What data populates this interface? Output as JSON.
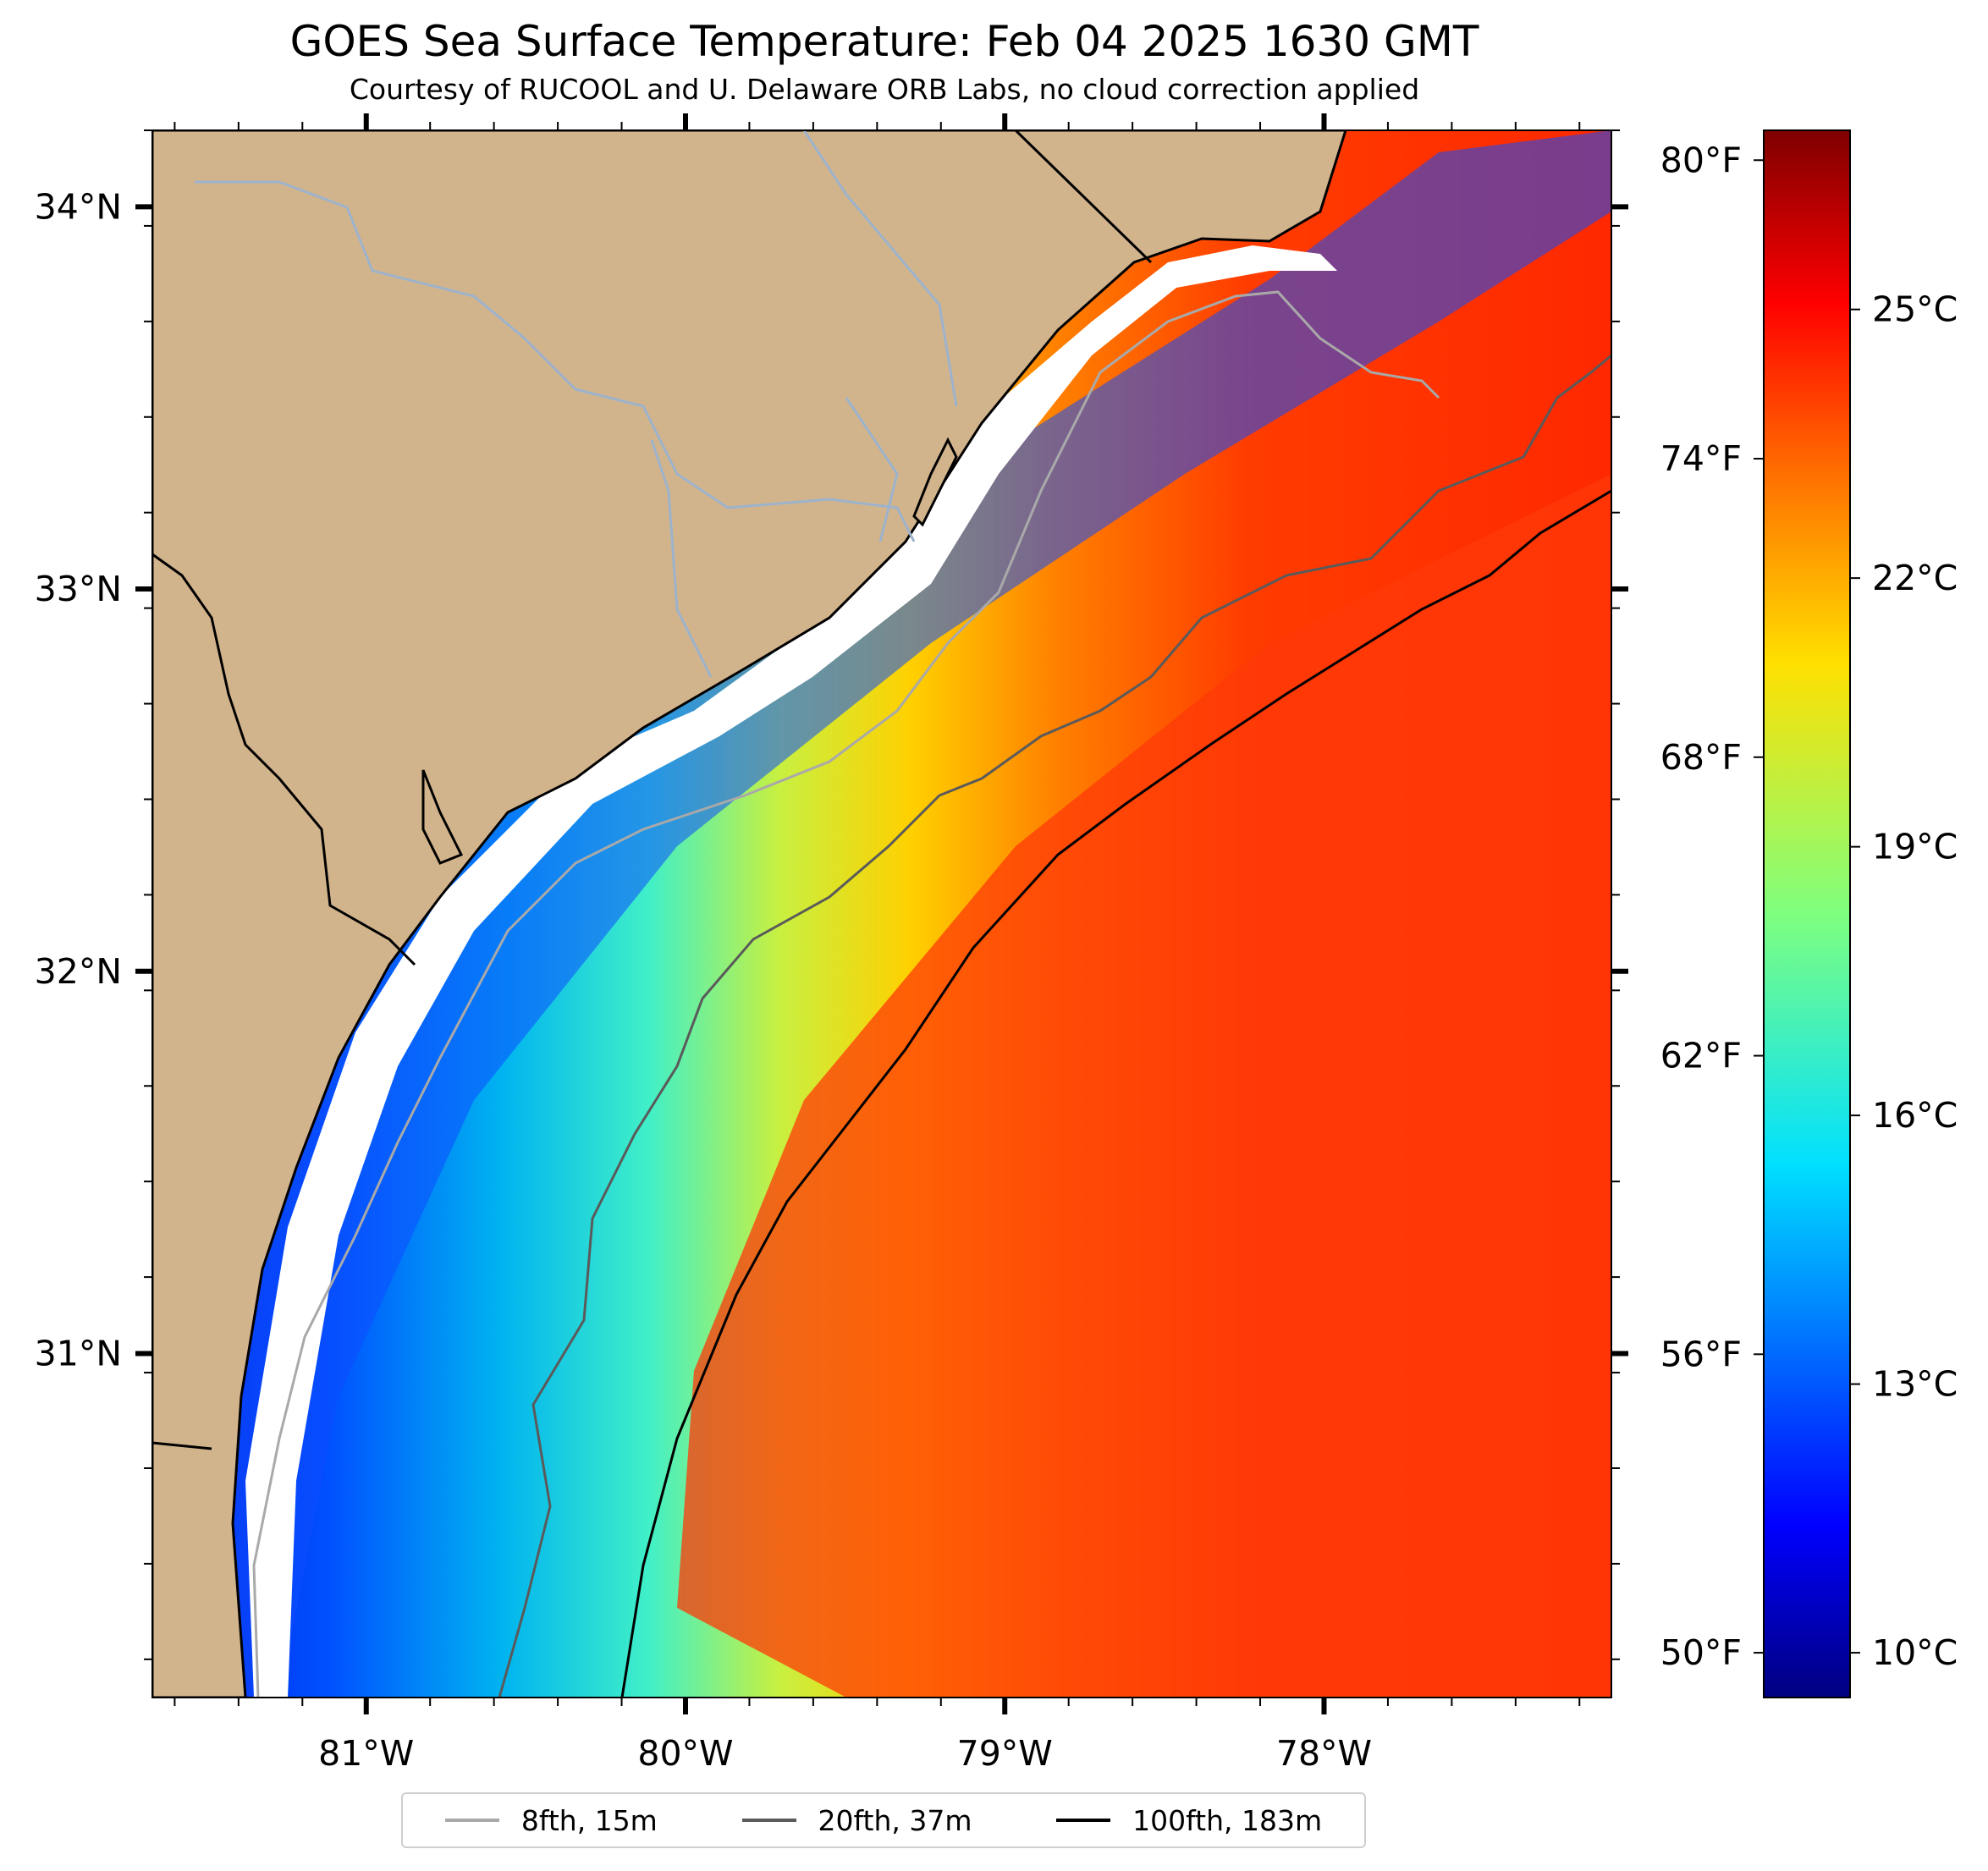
{
  "title": "GOES Sea Surface Temperature: Feb 04 2025 1630 GMT",
  "subtitle": "Courtesy of RUCOOL and U. Delaware ORB Labs, no cloud correction applied",
  "colors": {
    "land": "#d2b48c",
    "river": "#9db3cc",
    "coast": "#000000",
    "isobath_8fth": "#a9a9a9",
    "isobath_20fth": "#5a5a5a",
    "isobath_100fth": "#000000"
  },
  "map": {
    "lon_range": [
      -81.67,
      -77.1
    ],
    "lat_range": [
      30.1,
      34.2
    ],
    "lon_ticks": [
      {
        "value": -81,
        "label": "81°W"
      },
      {
        "value": -80,
        "label": "80°W"
      },
      {
        "value": -79,
        "label": "79°W"
      },
      {
        "value": -78,
        "label": "78°W"
      }
    ],
    "lat_ticks": [
      {
        "value": 34,
        "label": "34°N"
      },
      {
        "value": 33,
        "label": "33°N"
      },
      {
        "value": 32,
        "label": "32°N"
      },
      {
        "value": 31,
        "label": "31°N"
      }
    ]
  },
  "colorbar": {
    "colormap": "jet",
    "range_c": [
      9.5,
      27
    ],
    "celsius_ticks": [
      {
        "value": 10,
        "label": "10°C"
      },
      {
        "value": 13,
        "label": "13°C"
      },
      {
        "value": 16,
        "label": "16°C"
      },
      {
        "value": 19,
        "label": "19°C"
      },
      {
        "value": 22,
        "label": "22°C"
      },
      {
        "value": 25,
        "label": "25°C"
      }
    ],
    "fahrenheit_ticks": [
      {
        "value": 50,
        "label": "50°F"
      },
      {
        "value": 56,
        "label": "56°F"
      },
      {
        "value": 62,
        "label": "62°F"
      },
      {
        "value": 68,
        "label": "68°F"
      },
      {
        "value": 74,
        "label": "74°F"
      },
      {
        "value": 80,
        "label": "80°F"
      }
    ]
  },
  "legend": [
    {
      "label": "8fth, 15m",
      "color": "#a9a9a9"
    },
    {
      "label": "20fth, 37m",
      "color": "#5a5a5a"
    },
    {
      "label": "100fth, 183m",
      "color": "#000000"
    }
  ]
}
